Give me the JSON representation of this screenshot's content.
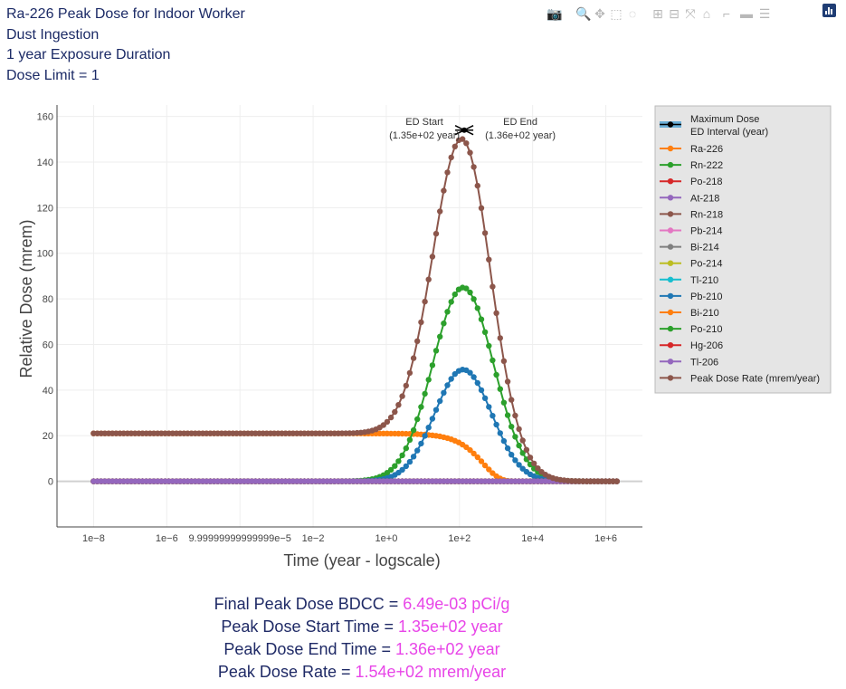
{
  "title_lines": [
    "Ra-226 Peak Dose for Indoor Worker",
    "Dust Ingestion",
    "1 year Exposure Duration",
    "Dose Limit = 1"
  ],
  "modebar": [
    {
      "name": "camera-icon",
      "glyph": "📷"
    },
    {
      "name": "zoom-icon",
      "glyph": "🔍"
    },
    {
      "name": "pan-icon",
      "glyph": "✥"
    },
    {
      "name": "box-select-icon",
      "glyph": "⬚"
    },
    {
      "name": "lasso-select-icon",
      "glyph": "◌"
    },
    {
      "name": "zoom-in-icon",
      "glyph": "⊞"
    },
    {
      "name": "zoom-out-icon",
      "glyph": "⊟"
    },
    {
      "name": "autoscale-icon",
      "glyph": "⤧"
    },
    {
      "name": "reset-axes-icon",
      "glyph": "⌂"
    },
    {
      "name": "spike-lines-icon",
      "glyph": "⌐"
    },
    {
      "name": "hover-closest-icon",
      "glyph": "▬"
    },
    {
      "name": "hover-compare-icon",
      "glyph": "☰"
    }
  ],
  "chart_data": {
    "type": "line",
    "xlabel": "Time (year - logscale)",
    "ylabel": "Relative Dose (mrem)",
    "x_scale": "log",
    "x_tick_labels": [
      "1e−8",
      "1e−6",
      "9.99999999999999e−5",
      "1e−2",
      "1e+0",
      "1e+2",
      "1e+4",
      "1e+6"
    ],
    "x_tick_values": [
      1e-08,
      1e-06,
      0.0001,
      0.01,
      1,
      100,
      10000,
      1000000
    ],
    "xlim": [
      1e-09,
      10000000.0
    ],
    "ylim": [
      -20,
      165
    ],
    "y_ticks": [
      0,
      20,
      40,
      60,
      80,
      100,
      120,
      140,
      160
    ],
    "x_range": [
      1e-08,
      2000000.0
    ],
    "legend_position": "right",
    "annotations": [
      {
        "label": "ED Start",
        "sub": "(1.35e+02 year)",
        "x": 135,
        "side": "left"
      },
      {
        "label": "ED End",
        "sub": "(1.36e+02 year)",
        "x": 136,
        "side": "right"
      }
    ],
    "max_point": {
      "x": 135,
      "y": 154
    },
    "series": [
      {
        "name": "Maximum Dose\nED Interval (year)",
        "color": "#000000",
        "legend_only": true,
        "kind": "maxdose"
      },
      {
        "name": "Ra-226",
        "color": "#ff7f0e",
        "model": {
          "type": "decay",
          "y0": 21,
          "k": 0.0022
        }
      },
      {
        "name": "Rn-222",
        "color": "#2ca02c",
        "model": {
          "type": "gauss",
          "peak": 85,
          "mu": 2.1,
          "sigma": 0.83
        }
      },
      {
        "name": "Po-218",
        "color": "#d62728",
        "model": {
          "type": "zero"
        }
      },
      {
        "name": "At-218",
        "color": "#9467bd",
        "model": {
          "type": "zero"
        }
      },
      {
        "name": "Rn-218",
        "color": "#8c564b",
        "model": {
          "type": "zero"
        }
      },
      {
        "name": "Pb-214",
        "color": "#e377c2",
        "model": {
          "type": "zero"
        }
      },
      {
        "name": "Bi-214",
        "color": "#7f7f7f",
        "model": {
          "type": "zero"
        }
      },
      {
        "name": "Po-214",
        "color": "#bcbd22",
        "model": {
          "type": "zero"
        }
      },
      {
        "name": "Tl-210",
        "color": "#17becf",
        "model": {
          "type": "zero"
        }
      },
      {
        "name": "Pb-210",
        "color": "#1f77b4",
        "model": {
          "type": "gauss",
          "peak": 49,
          "mu": 2.1,
          "sigma": 0.78
        }
      },
      {
        "name": "Bi-210",
        "color": "#ff7f0e",
        "model": {
          "type": "zero"
        }
      },
      {
        "name": "Po-210",
        "color": "#2ca02c",
        "model": {
          "type": "zero"
        }
      },
      {
        "name": "Hg-206",
        "color": "#d62728",
        "model": {
          "type": "zero"
        }
      },
      {
        "name": "Tl-206",
        "color": "#9467bd",
        "model": {
          "type": "zero"
        }
      },
      {
        "name": "Peak Dose Rate (mrem/year)",
        "color": "#8c564b",
        "model": {
          "type": "sum",
          "of": [
            "Ra-226",
            "Rn-222",
            "Pb-210"
          ]
        }
      }
    ]
  },
  "results": [
    {
      "label": "Final Peak Dose BDCC = ",
      "value": "6.49e-03 pCi/g"
    },
    {
      "label": "Peak Dose Start Time = ",
      "value": "1.35e+02 year"
    },
    {
      "label": "Peak Dose End Time = ",
      "value": "1.36e+02 year"
    },
    {
      "label": "Peak Dose Rate = ",
      "value": "1.54e+02 mrem/year"
    }
  ]
}
